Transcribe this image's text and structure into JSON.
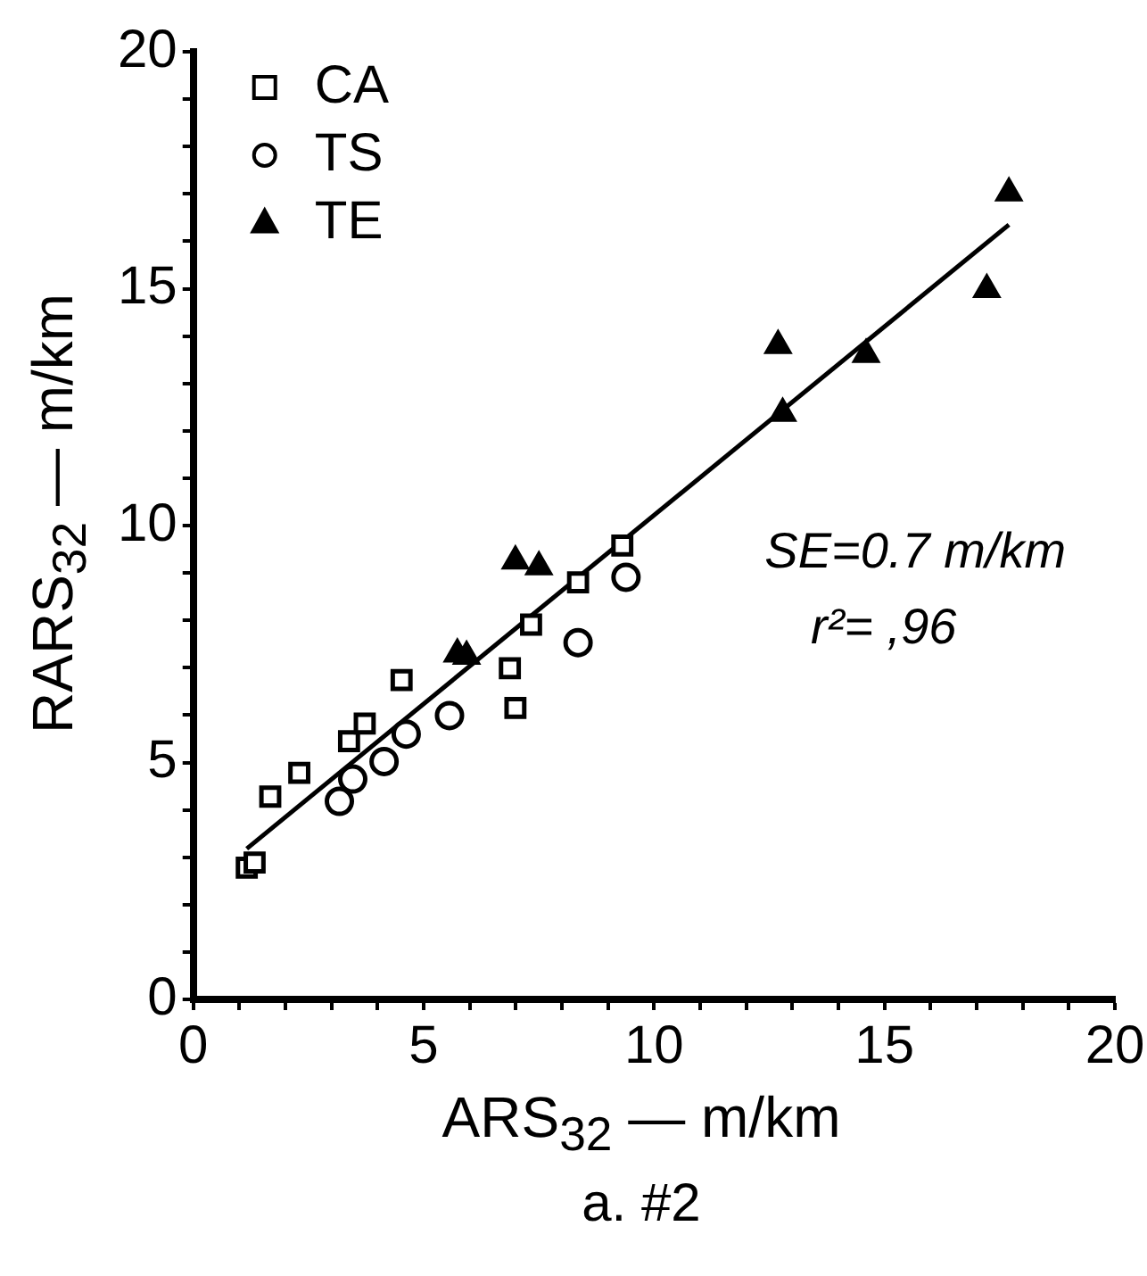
{
  "chart_data": {
    "type": "scatter",
    "title": "a. #2",
    "xlabel": "ARS$_{32}$ — m/km",
    "ylabel": "RARS$_{32}$ — m/km",
    "xlim": [
      0,
      20
    ],
    "ylim": [
      0,
      20
    ],
    "xticks": [
      0,
      {
        "value": 1,
        "label": null
      },
      {
        "value": 2,
        "label": null
      },
      {
        "value": 3,
        "label": null
      },
      {
        "value": 4,
        "label": null
      },
      5,
      {
        "value": 6,
        "label": null
      },
      {
        "value": 7,
        "label": null
      },
      {
        "value": 8,
        "label": null
      },
      {
        "value": 9,
        "label": null
      },
      10,
      {
        "value": 11,
        "label": null
      },
      {
        "value": 12,
        "label": null
      },
      {
        "value": 13,
        "label": null
      },
      {
        "value": 14,
        "label": null
      },
      15,
      {
        "value": 16,
        "label": null
      },
      {
        "value": 17,
        "label": null
      },
      {
        "value": 18,
        "label": null
      },
      {
        "value": 19,
        "label": null
      },
      20
    ],
    "yticks": [
      0,
      {
        "value": 1,
        "label": null
      },
      {
        "value": 2,
        "label": null
      },
      {
        "value": 3,
        "label": null
      },
      {
        "value": 4,
        "label": null
      },
      5,
      {
        "value": 6,
        "label": null
      },
      {
        "value": 7,
        "label": null
      },
      {
        "value": 8,
        "label": null
      },
      {
        "value": 9,
        "label": null
      },
      10,
      {
        "value": 11,
        "label": null
      },
      {
        "value": 12,
        "label": null
      },
      {
        "value": 13,
        "label": null
      },
      {
        "value": 14,
        "label": null
      },
      15,
      {
        "value": 16,
        "label": null
      },
      {
        "value": 17,
        "label": null
      },
      {
        "value": 18,
        "label": null
      },
      {
        "value": 19,
        "label": null
      },
      20
    ],
    "grid": false,
    "legend": "top left",
    "annotations": [
      "SE=0.7 m/km",
      "r²= ,96"
    ],
    "series": [
      {
        "name": "CA",
        "type": "scatter",
        "marker": "square",
        "color": "#000000",
        "x": [
          1.16,
          1.33,
          1.67,
          2.3,
          3.38,
          3.72,
          4.52,
          6.87,
          6.99,
          7.33,
          8.35,
          9.31
        ],
        "values": [
          2.78,
          2.89,
          4.28,
          4.78,
          5.45,
          5.82,
          6.74,
          6.99,
          6.15,
          7.91,
          8.8,
          9.58
        ]
      },
      {
        "name": "TS",
        "type": "scatter",
        "marker": "circle",
        "color": "#000000",
        "x": [
          3.17,
          3.46,
          4.14,
          4.62,
          5.56,
          8.35,
          9.39
        ],
        "values": [
          4.18,
          4.65,
          5.02,
          5.6,
          5.99,
          7.53,
          8.91
        ]
      },
      {
        "name": "TE",
        "type": "scatter",
        "marker": "triangle",
        "color": "#000000",
        "x": [
          5.73,
          5.93,
          6.99,
          7.5,
          12.69,
          12.79,
          14.6,
          17.22,
          17.7
        ],
        "values": [
          7.29,
          7.24,
          9.25,
          9.13,
          13.8,
          12.37,
          13.61,
          14.98,
          17.02
        ]
      },
      {
        "type": "line",
        "marker": "none",
        "line_style": "solid",
        "color": "#000000",
        "x": [
          1.16,
          17.7
        ],
        "values": [
          3.18,
          16.35
        ]
      }
    ]
  }
}
